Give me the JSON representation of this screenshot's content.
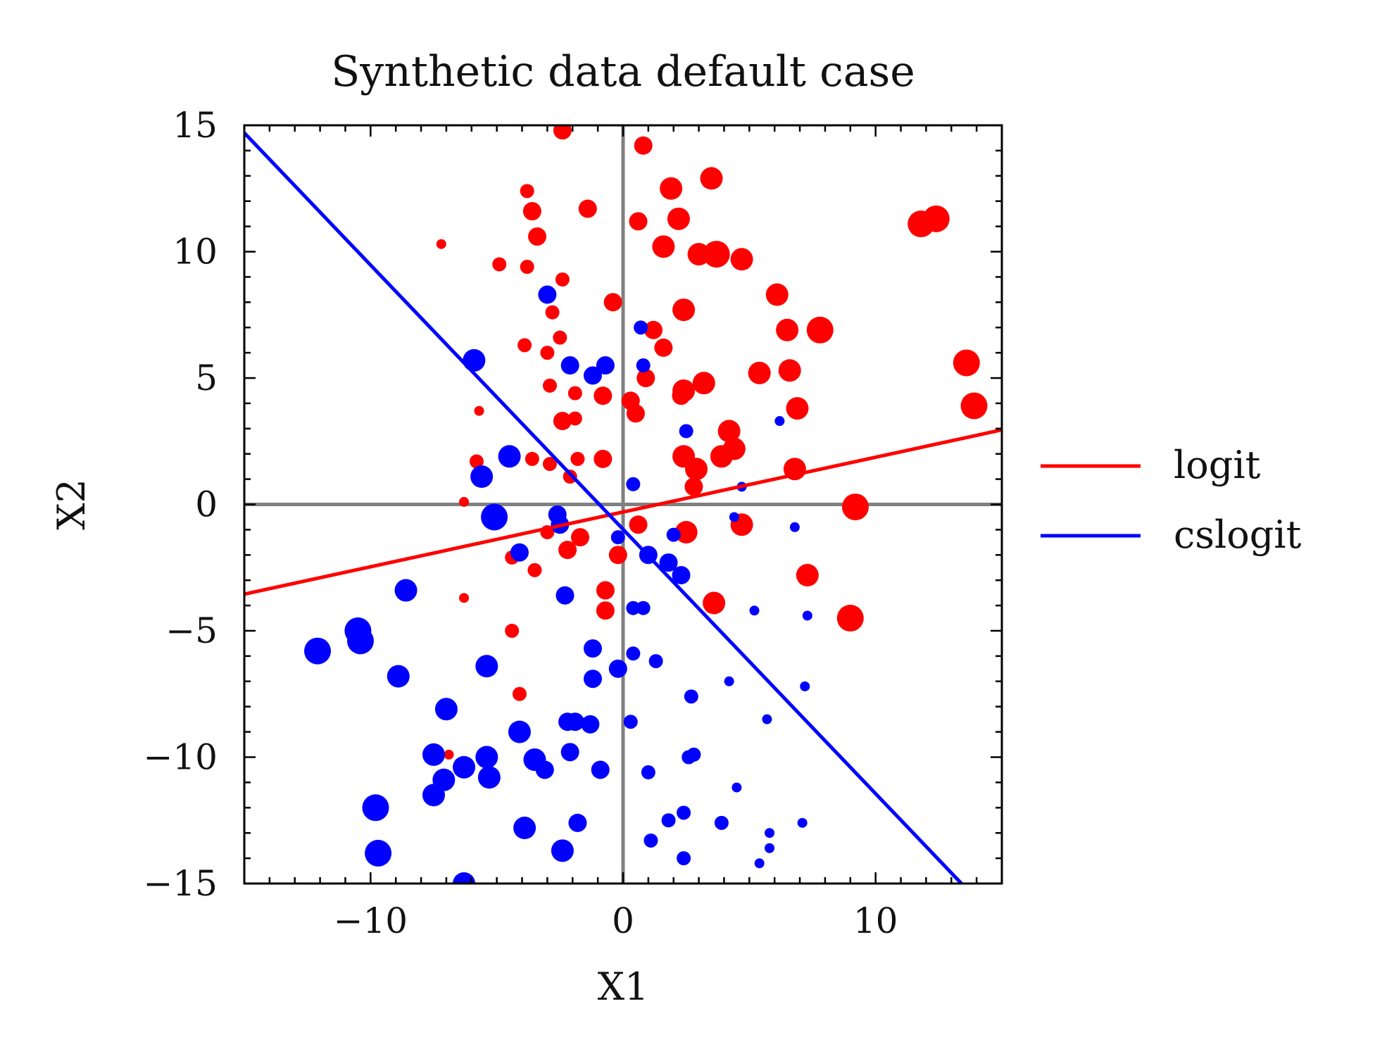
{
  "chart_data": {
    "type": "scatter",
    "title": "Synthetic data default case",
    "xlabel": "X1",
    "ylabel": "X2",
    "xlim": [
      -15,
      15
    ],
    "ylim": [
      -15,
      15
    ],
    "x_ticks": [
      -10,
      0,
      10
    ],
    "y_ticks": [
      15,
      10,
      5,
      0,
      -5,
      -10,
      -15
    ],
    "x_tick_labels": [
      "−10",
      "0",
      "10"
    ],
    "y_tick_labels": [
      "15",
      "10",
      "5",
      "0",
      "−5",
      "−10",
      "−15"
    ],
    "grid": false,
    "reference_lines": {
      "x": 0,
      "y": 0,
      "color": "#808080"
    },
    "legend_position": "right",
    "colors": {
      "class_red": "#ff0000",
      "class_blue": "#0000ff",
      "reference": "#808080"
    },
    "lines": [
      {
        "name": "logit",
        "color": "#ff0000",
        "points": [
          [
            -15,
            -3.55
          ],
          [
            15,
            2.95
          ]
        ]
      },
      {
        "name": "cslogit",
        "color": "#0000ff",
        "points": [
          [
            -15,
            14.7
          ],
          [
            13.4,
            -15
          ]
        ]
      }
    ],
    "series": [
      {
        "color": "#ff0000",
        "points": [
          [
            -2.4,
            14.8,
            2
          ],
          [
            0.8,
            14.2,
            2
          ],
          [
            3.5,
            12.9,
            3
          ],
          [
            -3.8,
            12.4,
            1
          ],
          [
            -1.4,
            11.7,
            2
          ],
          [
            -3.6,
            11.6,
            2
          ],
          [
            1.9,
            12.5,
            3
          ],
          [
            2.2,
            11.3,
            3
          ],
          [
            0.6,
            11.2,
            2
          ],
          [
            -3.4,
            10.6,
            2
          ],
          [
            -7.2,
            10.3,
            0
          ],
          [
            1.6,
            10.2,
            3
          ],
          [
            3,
            9.9,
            3
          ],
          [
            3.7,
            9.9,
            4
          ],
          [
            4.7,
            9.7,
            3
          ],
          [
            -4.9,
            9.5,
            1
          ],
          [
            -3.8,
            9.4,
            1
          ],
          [
            -2.4,
            8.9,
            1
          ],
          [
            11.8,
            11.1,
            4
          ],
          [
            12.4,
            11.3,
            4
          ],
          [
            6.1,
            8.3,
            3
          ],
          [
            -0.4,
            8.0,
            2
          ],
          [
            -2.8,
            7.6,
            1
          ],
          [
            2.4,
            7.7,
            3
          ],
          [
            6.5,
            6.9,
            3
          ],
          [
            7.8,
            6.9,
            4
          ],
          [
            1.2,
            6.9,
            2
          ],
          [
            1.6,
            6.2,
            2
          ],
          [
            -2.5,
            6.6,
            1
          ],
          [
            -3.9,
            6.3,
            1
          ],
          [
            -3.0,
            6.0,
            1
          ],
          [
            13.6,
            5.6,
            4
          ],
          [
            5.4,
            5.2,
            3
          ],
          [
            6.6,
            5.3,
            3
          ],
          [
            0.9,
            5.0,
            2
          ],
          [
            3.2,
            4.8,
            3
          ],
          [
            2.4,
            4.5,
            3
          ],
          [
            2.3,
            4.3,
            2
          ],
          [
            -2.9,
            4.7,
            1
          ],
          [
            -1.9,
            4.4,
            1
          ],
          [
            -0.8,
            4.3,
            2
          ],
          [
            0.3,
            4.1,
            2
          ],
          [
            0.5,
            3.6,
            2
          ],
          [
            -5.7,
            3.7,
            0
          ],
          [
            -2.4,
            3.3,
            2
          ],
          [
            -1.9,
            3.4,
            1
          ],
          [
            6.9,
            3.8,
            3
          ],
          [
            13.9,
            3.9,
            4
          ],
          [
            4.2,
            2.9,
            3
          ],
          [
            4.4,
            2.2,
            3
          ],
          [
            3.9,
            1.9,
            3
          ],
          [
            2.4,
            1.9,
            3
          ],
          [
            2.9,
            1.4,
            3
          ],
          [
            -1.8,
            1.8,
            1
          ],
          [
            -0.8,
            1.8,
            2
          ],
          [
            -2.9,
            1.6,
            1
          ],
          [
            -3.6,
            1.8,
            1
          ],
          [
            -5.8,
            1.7,
            1
          ],
          [
            -2.1,
            1.1,
            1
          ],
          [
            6.8,
            1.4,
            3
          ],
          [
            2.8,
            0.7,
            2
          ],
          [
            -6.3,
            0.1,
            0
          ],
          [
            9.2,
            -0.1,
            4
          ],
          [
            0.6,
            -0.8,
            2
          ],
          [
            4.7,
            -0.8,
            3
          ],
          [
            -3.0,
            -1.1,
            1
          ],
          [
            -1.7,
            -1.3,
            2
          ],
          [
            -2.2,
            -1.8,
            2
          ],
          [
            2.5,
            -1.1,
            3
          ],
          [
            -4.4,
            -2.1,
            1
          ],
          [
            -3.5,
            -2.6,
            1
          ],
          [
            -0.2,
            -2.0,
            2
          ],
          [
            7.3,
            -2.8,
            3
          ],
          [
            -6.3,
            -3.7,
            0
          ],
          [
            3.6,
            -3.9,
            3
          ],
          [
            -0.7,
            -4.2,
            2
          ],
          [
            9.0,
            -4.5,
            4
          ],
          [
            -4.4,
            -5.0,
            1
          ],
          [
            -4.1,
            -7.5,
            1
          ],
          [
            -6.9,
            -9.9,
            0
          ],
          [
            -0.7,
            -3.4,
            2
          ]
        ]
      },
      {
        "color": "#0000ff",
        "points": [
          [
            -3.0,
            8.3,
            2
          ],
          [
            0.7,
            7.0,
            1
          ],
          [
            -5.9,
            5.7,
            3
          ],
          [
            -2.1,
            5.5,
            2
          ],
          [
            -1.2,
            5.1,
            2
          ],
          [
            -0.7,
            5.5,
            2
          ],
          [
            0.8,
            5.5,
            1
          ],
          [
            -4.5,
            1.9,
            3
          ],
          [
            -5.6,
            1.1,
            3
          ],
          [
            0.4,
            0.8,
            1
          ],
          [
            4.7,
            0.7,
            0
          ],
          [
            -5.1,
            -0.5,
            4
          ],
          [
            -2.6,
            -0.4,
            2
          ],
          [
            2.5,
            2.9,
            1
          ],
          [
            6.2,
            3.3,
            0
          ],
          [
            4.4,
            -0.5,
            0
          ],
          [
            6.8,
            -0.9,
            0
          ],
          [
            -2.5,
            -0.8,
            2
          ],
          [
            -0.2,
            -1.3,
            1
          ],
          [
            -4.1,
            -1.9,
            2
          ],
          [
            1.0,
            -2.0,
            2
          ],
          [
            2.0,
            -1.2,
            1
          ],
          [
            1.8,
            -2.3,
            2
          ],
          [
            2.3,
            -2.8,
            2
          ],
          [
            -8.6,
            -3.4,
            3
          ],
          [
            -2.3,
            -3.6,
            2
          ],
          [
            0.8,
            -4.1,
            1
          ],
          [
            0.4,
            -4.1,
            1
          ],
          [
            5.2,
            -4.2,
            0
          ],
          [
            7.3,
            -4.4,
            0
          ],
          [
            -10.5,
            -5.0,
            4
          ],
          [
            -10.4,
            -5.4,
            4
          ],
          [
            -1.2,
            -5.7,
            2
          ],
          [
            0.4,
            -5.9,
            1
          ],
          [
            1.3,
            -6.2,
            1
          ],
          [
            -5.4,
            -6.4,
            3
          ],
          [
            -12.1,
            -5.8,
            4
          ],
          [
            -8.9,
            -6.8,
            3
          ],
          [
            -0.2,
            -6.5,
            2
          ],
          [
            -1.2,
            -6.9,
            2
          ],
          [
            4.2,
            -7.0,
            0
          ],
          [
            7.2,
            -7.2,
            0
          ],
          [
            2.7,
            -7.6,
            1
          ],
          [
            -7.0,
            -8.1,
            3
          ],
          [
            -1.9,
            -8.6,
            2
          ],
          [
            -2.2,
            -8.6,
            2
          ],
          [
            -1.3,
            -8.7,
            2
          ],
          [
            0.3,
            -8.6,
            1
          ],
          [
            5.7,
            -8.5,
            0
          ],
          [
            -4.1,
            -9.0,
            3
          ],
          [
            -2.1,
            -9.8,
            2
          ],
          [
            -7.5,
            -9.9,
            3
          ],
          [
            -3.5,
            -10.1,
            3
          ],
          [
            -5.4,
            -10.0,
            3
          ],
          [
            -6.3,
            -10.4,
            3
          ],
          [
            -3.1,
            -10.5,
            2
          ],
          [
            -0.9,
            -10.5,
            2
          ],
          [
            1.0,
            -10.6,
            1
          ],
          [
            2.6,
            -10.0,
            1
          ],
          [
            2.8,
            -9.9,
            1
          ],
          [
            -7.1,
            -10.9,
            3
          ],
          [
            -7.5,
            -11.5,
            3
          ],
          [
            -5.3,
            -10.8,
            3
          ],
          [
            4.5,
            -11.2,
            0
          ],
          [
            -9.8,
            -12.0,
            4
          ],
          [
            -1.8,
            -12.6,
            2
          ],
          [
            1.8,
            -12.5,
            1
          ],
          [
            2.4,
            -12.2,
            1
          ],
          [
            3.9,
            -12.6,
            1
          ],
          [
            7.1,
            -12.6,
            0
          ],
          [
            -3.9,
            -12.8,
            3
          ],
          [
            5.8,
            -13.0,
            0
          ],
          [
            1.1,
            -13.3,
            1
          ],
          [
            -2.4,
            -13.7,
            3
          ],
          [
            5.8,
            -13.6,
            0
          ],
          [
            -9.7,
            -13.8,
            4
          ],
          [
            2.4,
            -14.0,
            1
          ],
          [
            5.4,
            -14.2,
            0
          ],
          [
            -6.3,
            -15.0,
            3
          ]
        ]
      }
    ]
  }
}
